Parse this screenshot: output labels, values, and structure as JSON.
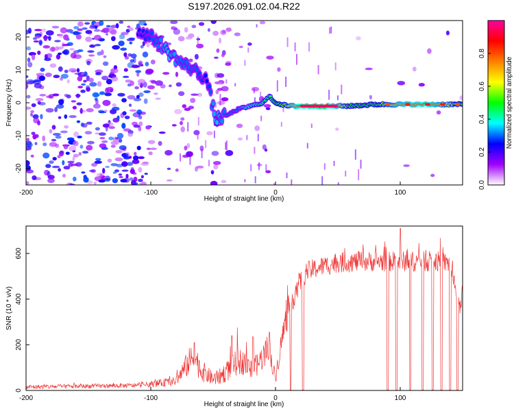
{
  "title": "S197.2026.091.02.04.R22",
  "chart_data": [
    {
      "type": "heatmap",
      "name": "spectrogram",
      "xlabel": "Height of straight line (km)",
      "ylabel": "Frequency (Hz)",
      "xlim": [
        -200,
        150
      ],
      "ylim": [
        -25,
        25
      ],
      "x_ticks": [
        -200,
        -100,
        0,
        100
      ],
      "y_ticks": [
        -20,
        -10,
        0,
        10,
        20
      ],
      "colorbar": {
        "label": "Normalized spectral amplitude",
        "range": [
          0.0,
          1.0
        ],
        "ticks": [
          0.0,
          0.2,
          0.4,
          0.6,
          0.8
        ],
        "colors": [
          "#ffffff",
          "#a000ff",
          "#0000ff",
          "#00ffff",
          "#00ff00",
          "#ffff00",
          "#ff8000",
          "#ff0000",
          "#ff00a0"
        ]
      },
      "ridge": {
        "name": "signal ridge (frequency vs height)",
        "x": [
          -110,
          -95,
          -85,
          -75,
          -65,
          -55,
          -48,
          -40,
          -30,
          -20,
          -10,
          -5,
          0,
          10,
          20,
          40,
          60,
          80,
          100,
          120,
          150
        ],
        "y": [
          22,
          19,
          15,
          12,
          10,
          7,
          -5,
          -4,
          -2,
          -1,
          0,
          2,
          0,
          -1,
          -1,
          -1,
          -1,
          -0.5,
          -0.5,
          -0.5,
          -0.5
        ],
        "amplitude": [
          0.25,
          0.3,
          0.35,
          0.3,
          0.3,
          0.25,
          0.35,
          0.3,
          0.3,
          0.4,
          0.45,
          0.45,
          0.5,
          0.6,
          0.9,
          0.95,
          0.5,
          0.5,
          0.75,
          0.85,
          0.5
        ]
      },
      "hot_spots": [
        {
          "x": 20,
          "x_end": 50,
          "y": -1,
          "amplitude": 0.95
        },
        {
          "x": 88,
          "x_end": 92,
          "y": -0.5,
          "amplitude": 0.8
        },
        {
          "x": 104,
          "x_end": 108,
          "y": -0.5,
          "amplitude": 0.85
        },
        {
          "x": 120,
          "x_end": 124,
          "y": -0.5,
          "amplitude": 0.85
        },
        {
          "x": 132,
          "x_end": 136,
          "y": -0.5,
          "amplitude": 0.85
        },
        {
          "x": 144,
          "x_end": 148,
          "y": -0.5,
          "amplitude": 0.8
        }
      ]
    },
    {
      "type": "line",
      "name": "snr",
      "xlabel": "Height of straight line (km)",
      "ylabel": "SNR (10 * v/v)",
      "xlim": [
        -200,
        150
      ],
      "ylim": [
        0,
        720
      ],
      "x_ticks": [
        -200,
        -100,
        0,
        100
      ],
      "y_ticks": [
        0,
        200,
        400,
        600
      ],
      "color": "#ee3333",
      "series": [
        {
          "name": "SNR",
          "envelope_x": [
            -200,
            -110,
            -95,
            -80,
            -75,
            -70,
            -65,
            -60,
            -55,
            -50,
            -45,
            -40,
            -35,
            -30,
            -25,
            -20,
            -15,
            -10,
            -5,
            -2,
            0,
            5,
            8,
            12,
            18,
            25,
            35,
            50,
            70,
            90,
            110,
            130,
            140,
            145,
            148,
            150
          ],
          "envelope_y": [
            15,
            22,
            30,
            40,
            80,
            120,
            150,
            90,
            70,
            50,
            60,
            80,
            100,
            130,
            120,
            90,
            110,
            150,
            200,
            90,
            60,
            220,
            300,
            380,
            460,
            520,
            540,
            560,
            565,
            565,
            565,
            565,
            555,
            420,
            360,
            450
          ],
          "noise_amplitude": [
            10,
            10,
            15,
            20,
            40,
            60,
            70,
            50,
            40,
            30,
            35,
            45,
            50,
            60,
            55,
            45,
            50,
            60,
            60,
            40,
            30,
            60,
            70,
            60,
            50,
            45,
            45,
            45,
            45,
            45,
            45,
            45,
            45,
            30,
            30,
            40
          ],
          "spikes": [
            {
              "x": -65,
              "y": 210
            },
            {
              "x": -35,
              "y": 240
            },
            {
              "x": -18,
              "y": 235
            },
            {
              "x": -5,
              "y": 255
            },
            {
              "x": 90,
              "y": 660
            },
            {
              "x": 100,
              "y": 710
            }
          ],
          "dropouts_x": [
            12,
            22,
            90,
            97,
            108,
            118,
            126,
            133,
            140,
            146
          ]
        }
      ]
    }
  ]
}
